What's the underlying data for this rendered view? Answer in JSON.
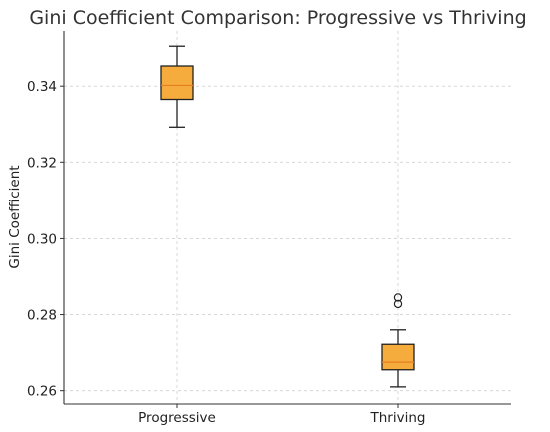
{
  "chart_data": {
    "type": "box",
    "title": "Gini Coefficient Comparison: Progressive vs Thriving",
    "xlabel": "",
    "ylabel": "Gini Coefficient",
    "ylim": [
      0.2565,
      0.3545
    ],
    "yticks": [
      0.26,
      0.28,
      0.3,
      0.32,
      0.34
    ],
    "ytick_labels": [
      "0.26",
      "0.28",
      "0.30",
      "0.32",
      "0.34"
    ],
    "grid": true,
    "box_color": "#f5ac3d",
    "median_color": "#e67e22",
    "categories": [
      "Progressive",
      "Thriving"
    ],
    "boxes": [
      {
        "name": "Progressive",
        "whisker_low": 0.3292,
        "q1": 0.3365,
        "median": 0.3402,
        "q3": 0.3453,
        "whisker_high": 0.3505,
        "outliers": []
      },
      {
        "name": "Thriving",
        "whisker_low": 0.261,
        "q1": 0.2655,
        "median": 0.2675,
        "q3": 0.2722,
        "whisker_high": 0.276,
        "outliers": [
          0.2845,
          0.2828
        ]
      }
    ]
  }
}
